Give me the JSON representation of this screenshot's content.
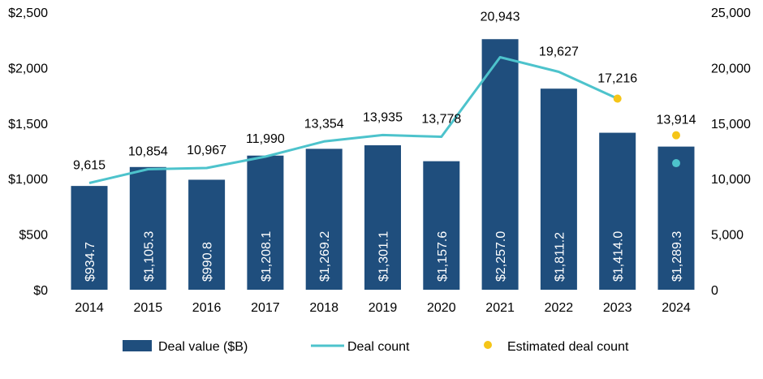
{
  "chart_data": {
    "type": "bar",
    "categories": [
      "2014",
      "2015",
      "2016",
      "2017",
      "2018",
      "2019",
      "2020",
      "2021",
      "2022",
      "2023",
      "2024"
    ],
    "series": [
      {
        "name": "Deal value ($B)",
        "type": "bar",
        "axis": "left",
        "color": "#1f4e7d",
        "values": [
          934.7,
          1105.3,
          990.8,
          1208.1,
          1269.2,
          1301.1,
          1157.6,
          2257.0,
          1811.2,
          1414.0,
          1289.3
        ],
        "labels": [
          "$934.7",
          "$1,105.3",
          "$990.8",
          "$1,208.1",
          "$1,269.2",
          "$1,301.1",
          "$1,157.6",
          "$2,257.0",
          "$1,811.2",
          "$1,414.0",
          "$1,289.3"
        ]
      },
      {
        "name": "Deal count",
        "type": "line",
        "axis": "right",
        "color": "#4dc3cc",
        "values": [
          9615,
          10854,
          10967,
          11990,
          13354,
          13935,
          13778,
          20943,
          19627,
          17216,
          11400
        ],
        "labels": [
          "9,615",
          "10,854",
          "10,967",
          "11,990",
          "13,354",
          "13,935",
          "13,778",
          "20,943",
          "19,627",
          "17,216",
          ""
        ]
      },
      {
        "name": "Estimated deal count",
        "type": "scatter",
        "axis": "right",
        "color": "#f5c518",
        "points": [
          {
            "category": "2023",
            "value": 17216,
            "label": ""
          },
          {
            "category": "2024",
            "value": 13914,
            "label": "13,914"
          }
        ]
      }
    ],
    "y_left": {
      "min": 0,
      "max": 2500,
      "ticks": [
        0,
        500,
        1000,
        1500,
        2000,
        2500
      ],
      "tick_labels": [
        "$0",
        "$500",
        "$1,000",
        "$1,500",
        "$2,000",
        "$2,500"
      ]
    },
    "y_right": {
      "min": 0,
      "max": 25000,
      "ticks": [
        0,
        5000,
        10000,
        15000,
        20000,
        25000
      ],
      "tick_labels": [
        "0",
        "5,000",
        "10,000",
        "15,000",
        "20,000",
        "25,000"
      ]
    },
    "title": "",
    "xlabel": "",
    "ylabel": "",
    "grid": false,
    "legend_position": "bottom"
  },
  "legend": {
    "items": [
      {
        "label": "Deal value ($B)",
        "shape": "bar",
        "color": "#1f4e7d"
      },
      {
        "label": "Deal count",
        "shape": "line",
        "color": "#4dc3cc"
      },
      {
        "label": "Estimated deal count",
        "shape": "dot",
        "color": "#f5c518"
      }
    ]
  }
}
